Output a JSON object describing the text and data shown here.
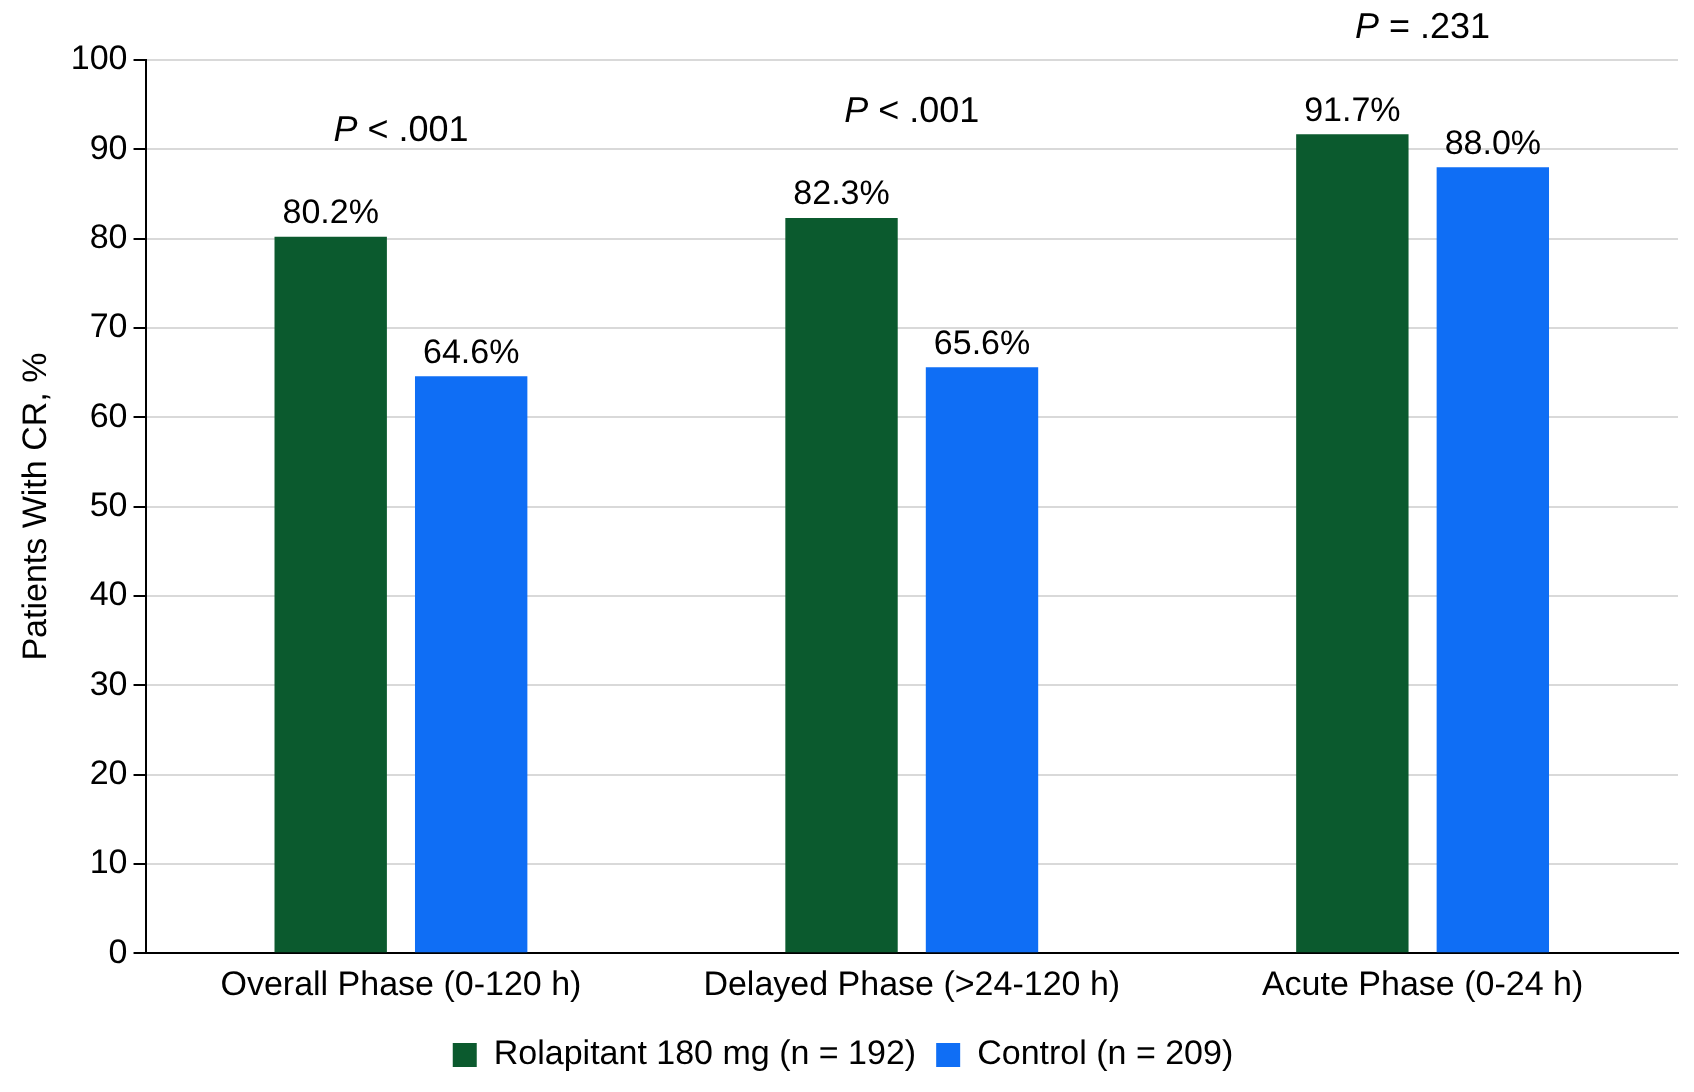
{
  "chart_data": {
    "type": "bar",
    "ylabel": "Patients With CR, %",
    "categories": [
      "Overall Phase (0-120 h)",
      "Delayed Phase (>24-120 h)",
      "Acute Phase (0-24 h)"
    ],
    "series": [
      {
        "name": "Rolapitant 180 mg (n = 192)",
        "color": "#0b5a2e",
        "values": [
          80.2,
          82.3,
          91.7
        ],
        "value_labels": [
          "80.2%",
          "82.3%",
          "91.7%"
        ]
      },
      {
        "name": "Control (n = 209)",
        "color": "#0f6ef5",
        "values": [
          64.6,
          65.6,
          88.0
        ],
        "value_labels": [
          "64.6%",
          "65.6%",
          "88.0%"
        ]
      }
    ],
    "ylim": [
      0,
      100
    ],
    "yticks": [
      0,
      10,
      20,
      30,
      40,
      50,
      60,
      70,
      80,
      90,
      100
    ],
    "grid": "y",
    "legend": "bottom",
    "annotations": [
      "P < .001",
      "P < .001",
      "P = .231"
    ]
  }
}
